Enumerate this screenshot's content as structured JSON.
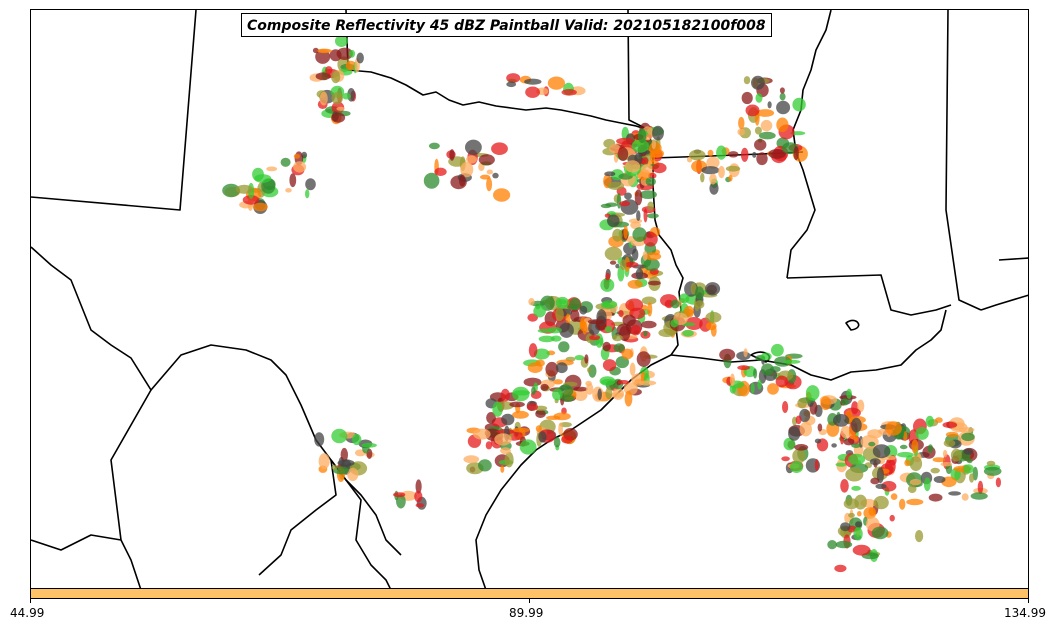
{
  "title": "Composite Reflectivity 45 dBZ Paintball Valid: 202105182100f008",
  "colorbar": {
    "color": "#ffc266",
    "ticks": [
      "44.99",
      "89.99",
      "134.99"
    ]
  },
  "map": {
    "boundary_color": "#000000",
    "ensemble_colors": [
      "#e41a1c",
      "#ff7f00",
      "#fdae61",
      "#33cc33",
      "#2e8b2e",
      "#999933",
      "#8b1a1a",
      "#444444"
    ]
  }
}
